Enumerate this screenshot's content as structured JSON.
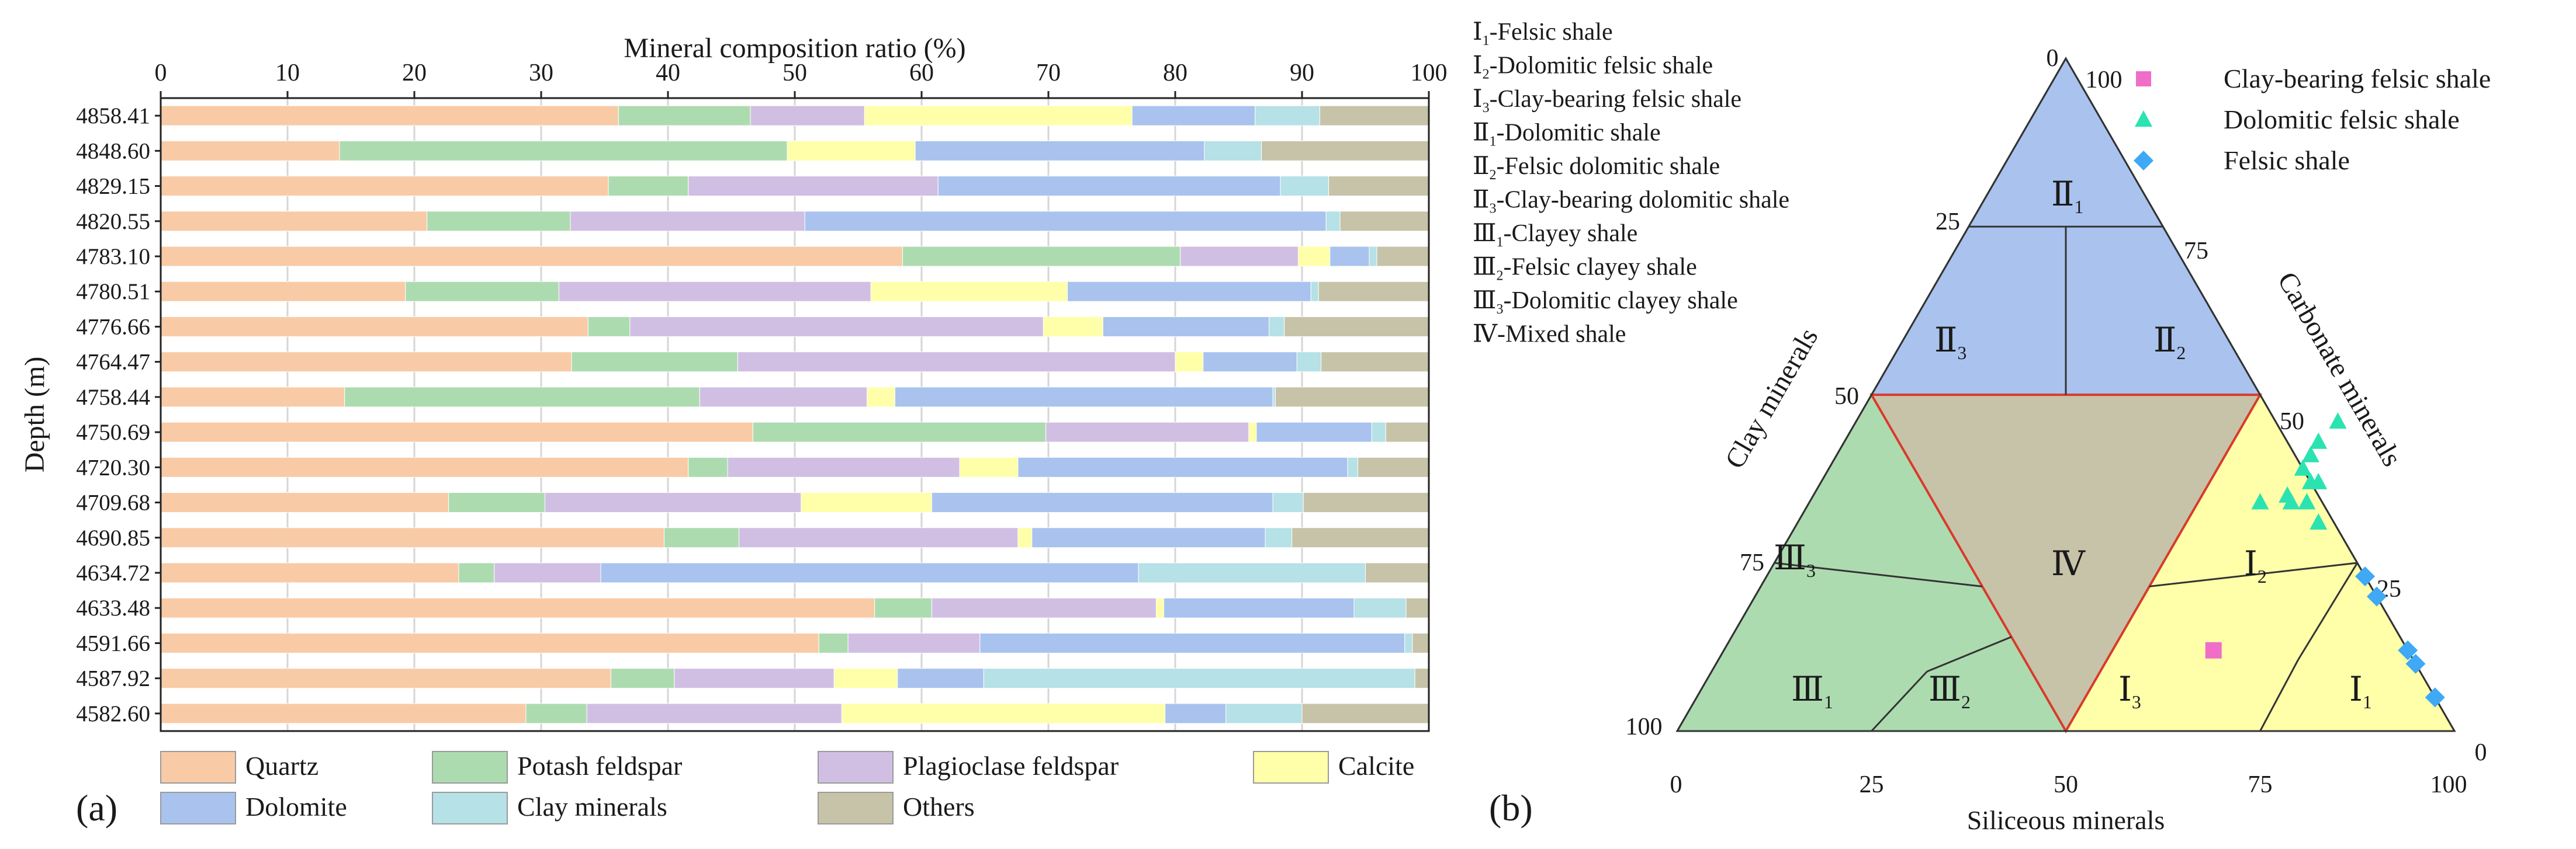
{
  "figure": {
    "panel_a_label": "(a)",
    "panel_b_label": "(b)"
  },
  "chart_data": [
    {
      "type": "bar",
      "orientation": "horizontal",
      "stacked": true,
      "title": "",
      "xlabel": "Mineral composition ratio (%)",
      "ylabel": "Depth (m)",
      "xlim": [
        0,
        100
      ],
      "x_ticks": [
        "0",
        "10",
        "20",
        "30",
        "40",
        "50",
        "60",
        "70",
        "80",
        "90",
        "100"
      ],
      "x_axis_position": "top",
      "grid": "vertical",
      "legend_position": "bottom",
      "categories": [
        "4858.41",
        "4848.60",
        "4829.15",
        "4820.55",
        "4783.10",
        "4780.51",
        "4776.66",
        "4764.47",
        "4758.44",
        "4750.69",
        "4720.30",
        "4709.68",
        "4690.85",
        "4634.72",
        "4633.48",
        "4591.66",
        "4587.92",
        "4582.60"
      ],
      "series": [
        {
          "name": "Quartz",
          "color": "#F8CBA6",
          "values": [
            36.1,
            14.1,
            35.3,
            21.0,
            58.5,
            19.3,
            33.7,
            32.4,
            14.5,
            46.7,
            41.6,
            22.7,
            39.7,
            23.5,
            56.3,
            51.9,
            35.5,
            28.8
          ]
        },
        {
          "name": "Potash feldspar",
          "color": "#ADDBB0",
          "values": [
            10.4,
            35.3,
            6.3,
            11.3,
            21.9,
            12.1,
            3.3,
            13.1,
            28.0,
            23.1,
            3.1,
            7.6,
            5.9,
            2.8,
            4.5,
            2.3,
            5.0,
            4.8
          ]
        },
        {
          "name": "Plagioclase feldspar",
          "color": "#D1BFE3",
          "values": [
            9.0,
            0.0,
            19.7,
            18.5,
            9.3,
            24.6,
            32.6,
            34.5,
            13.2,
            16.0,
            18.3,
            20.2,
            22.0,
            8.4,
            17.7,
            10.4,
            12.6,
            20.1
          ]
        },
        {
          "name": "Calcite",
          "color": "#FFFFAA",
          "values": [
            21.1,
            10.1,
            0.0,
            0.0,
            2.5,
            15.5,
            4.7,
            2.2,
            2.2,
            0.6,
            4.6,
            10.3,
            1.1,
            0.0,
            0.6,
            0.0,
            5.0,
            25.5
          ]
        },
        {
          "name": "Dolomite",
          "color": "#A9C3EE",
          "values": [
            9.7,
            22.8,
            27.0,
            41.1,
            3.1,
            19.2,
            13.1,
            7.4,
            29.8,
            9.1,
            26.0,
            26.9,
            18.4,
            42.4,
            15.0,
            33.5,
            6.8,
            4.8
          ]
        },
        {
          "name": "Clay minerals",
          "color": "#B6E1E6",
          "values": [
            5.1,
            4.5,
            3.8,
            1.1,
            0.6,
            0.6,
            1.2,
            1.9,
            0.2,
            1.1,
            0.8,
            2.4,
            2.1,
            17.9,
            4.1,
            0.6,
            34.0,
            6.0
          ]
        },
        {
          "name": "Others",
          "color": "#C7C3A9",
          "values": [
            8.6,
            13.2,
            7.9,
            7.0,
            4.1,
            8.7,
            11.4,
            8.5,
            12.1,
            3.4,
            5.6,
            9.9,
            10.8,
            5.0,
            1.8,
            1.3,
            1.1,
            10.0
          ]
        }
      ]
    },
    {
      "type": "scatter",
      "subtype": "ternary",
      "axes": {
        "left": "Clay minerals",
        "right": "Carbonate minerals",
        "bottom": "Siliceous minerals"
      },
      "tick_labels": [
        "0",
        "25",
        "50",
        "75",
        "100"
      ],
      "regions": [
        {
          "id": "II1",
          "label": "Ⅱ",
          "sub": "1",
          "color": "#A9C3EE"
        },
        {
          "id": "II2",
          "label": "Ⅱ",
          "sub": "2",
          "color": "#A9C3EE"
        },
        {
          "id": "II3",
          "label": "Ⅱ",
          "sub": "3",
          "color": "#A9C3EE"
        },
        {
          "id": "IV",
          "label": "Ⅳ",
          "sub": "",
          "color": "#C7C3A9"
        },
        {
          "id": "III1",
          "label": "Ⅲ",
          "sub": "1",
          "color": "#ADDBB0"
        },
        {
          "id": "III2",
          "label": "Ⅲ",
          "sub": "2",
          "color": "#ADDBB0"
        },
        {
          "id": "III3",
          "label": "Ⅲ",
          "sub": "3",
          "color": "#ADDBB0"
        },
        {
          "id": "I1",
          "label": "Ⅰ",
          "sub": "1",
          "color": "#FFFFAA"
        },
        {
          "id": "I2",
          "label": "Ⅰ",
          "sub": "2",
          "color": "#FFFFAA"
        },
        {
          "id": "I3",
          "label": "Ⅰ",
          "sub": "3",
          "color": "#FFFFAA"
        }
      ],
      "classification_legend": [
        {
          "label": "Ⅰ",
          "sub": "1",
          "text": "-Felsic shale"
        },
        {
          "label": "Ⅰ",
          "sub": "2",
          "text": "-Dolomitic felsic shale"
        },
        {
          "label": "Ⅰ",
          "sub": "3",
          "text": "-Clay-bearing felsic shale"
        },
        {
          "label": "Ⅱ",
          "sub": "1",
          "text": "-Dolomitic shale"
        },
        {
          "label": "Ⅱ",
          "sub": "2",
          "text": "-Felsic dolomitic shale"
        },
        {
          "label": "Ⅱ",
          "sub": "3",
          "text": "-Clay-bearing dolomitic shale"
        },
        {
          "label": "Ⅲ",
          "sub": "1",
          "text": "-Clayey shale"
        },
        {
          "label": "Ⅲ",
          "sub": "2",
          "text": "-Felsic clayey shale"
        },
        {
          "label": "Ⅲ",
          "sub": "3",
          "text": "-Dolomitic clayey shale"
        },
        {
          "label": "Ⅳ",
          "sub": "",
          "text": "-Mixed shale"
        }
      ],
      "series": [
        {
          "name": "Clay-bearing felsic shale",
          "marker": "square",
          "color": "#F06EC8",
          "points": [
            {
              "siliceous": 63,
              "carbonate": 12,
              "clay": 25
            }
          ]
        },
        {
          "name": "Dolomitic felsic shale",
          "marker": "triangle",
          "color": "#2BE3B0",
          "points": [
            {
              "siliceous": 62,
              "carbonate": 46,
              "clay": -8
            },
            {
              "siliceous": 61,
              "carbonate": 43,
              "clay": -4
            },
            {
              "siliceous": 61,
              "carbonate": 41,
              "clay": -2
            },
            {
              "siliceous": 61,
              "carbonate": 39,
              "clay": 0
            },
            {
              "siliceous": 61,
              "carbonate": 35,
              "clay": 4
            },
            {
              "siliceous": 58,
              "carbonate": 34,
              "clay": 8
            },
            {
              "siliceous": 62,
              "carbonate": 34,
              "clay": 4
            },
            {
              "siliceous": 63,
              "carbonate": 37,
              "clay": 0
            },
            {
              "siliceous": 64,
              "carbonate": 37,
              "clay": -1
            },
            {
              "siliceous": 64,
              "carbonate": 34,
              "clay": 2
            },
            {
              "siliceous": 67,
              "carbonate": 31,
              "clay": 2
            }
          ]
        },
        {
          "name": "Felsic shale",
          "marker": "diamond",
          "color": "#3FA9F5",
          "points": [
            {
              "siliceous": 77,
              "carbonate": 23,
              "clay": 0
            },
            {
              "siliceous": 80,
              "carbonate": 20,
              "clay": 0
            },
            {
              "siliceous": 88,
              "carbonate": 12,
              "clay": 0
            },
            {
              "siliceous": 90,
              "carbonate": 10,
              "clay": 0
            },
            {
              "siliceous": 95,
              "carbonate": 5,
              "clay": 0
            }
          ]
        }
      ]
    }
  ]
}
